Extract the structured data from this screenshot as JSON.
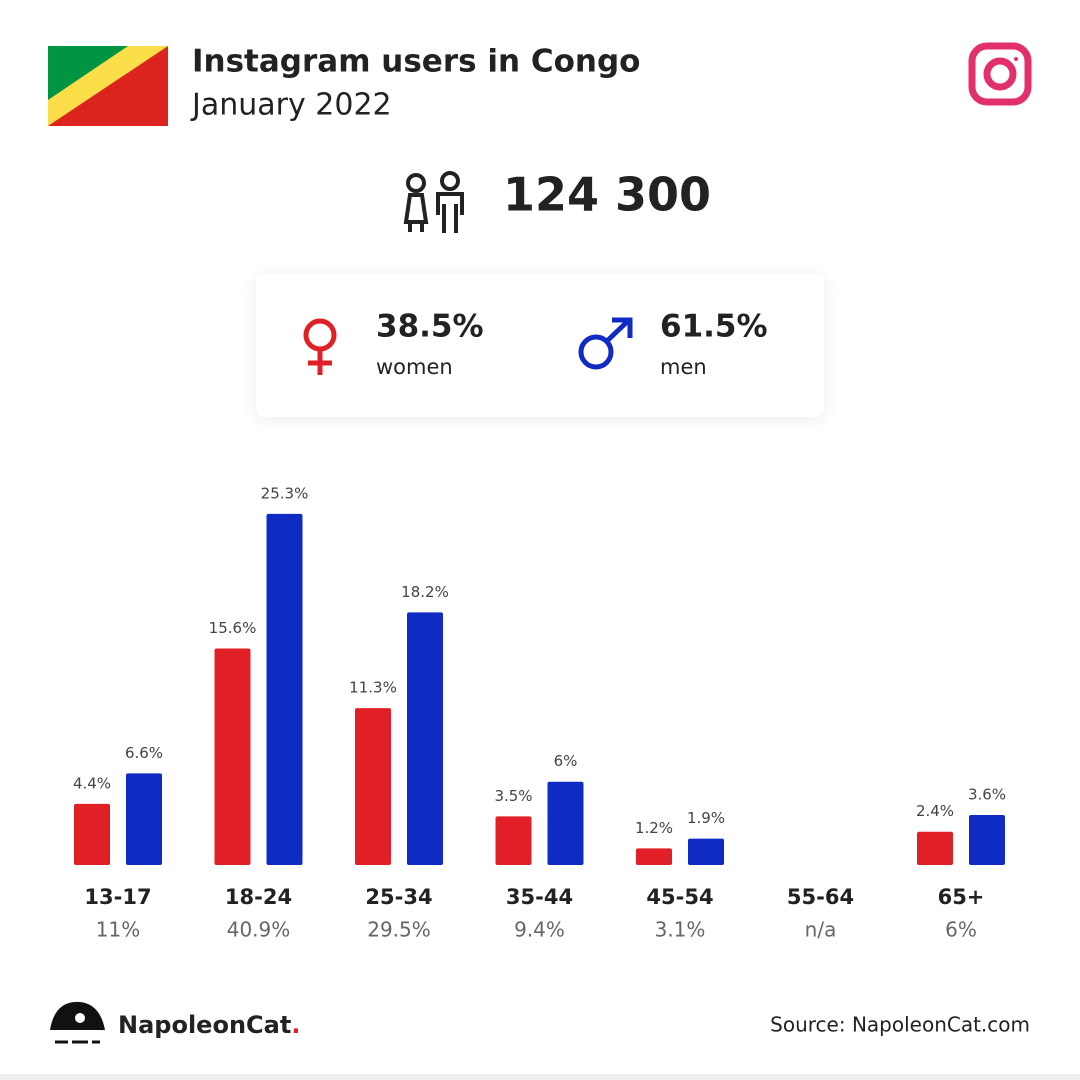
{
  "header": {
    "title": "Instagram users in Congo",
    "subtitle": "January 2022"
  },
  "total": "124 300",
  "gender": [
    {
      "share": "38.5%"
    },
    {
      "share": "61.5%"
    }
  ],
  "chart_data": {
    "type": "bar",
    "categories": [
      "13-17",
      "18-24",
      "25-34",
      "35-44",
      "45-54",
      "55-64",
      "65+"
    ],
    "category_totals": [
      "11%",
      "40.9%",
      "29.5%",
      "9.4%",
      "3.1%",
      "n/a",
      "6%"
    ],
    "series": [
      {
        "name": "women",
        "color": "#e02026",
        "values": [
          4.4,
          15.6,
          11.3,
          3.5,
          1.2,
          null,
          2.4
        ],
        "value_labels": [
          "4.4%",
          "15.6%",
          "11.3%",
          "3.5%",
          "1.2%",
          null,
          "2.4%"
        ]
      },
      {
        "name": "men",
        "color": "#0f2bc4",
        "values": [
          6.6,
          25.3,
          18.2,
          6,
          1.9,
          null,
          3.6
        ],
        "value_labels": [
          "6.6%",
          "25.3%",
          "18.2%",
          "6%",
          "1.9%",
          null,
          "3.6%"
        ]
      }
    ]
  },
  "footer": {
    "brand": "NapoleonCat",
    "brand_dot": ".",
    "source": "Source: NapoleonCat.com"
  }
}
